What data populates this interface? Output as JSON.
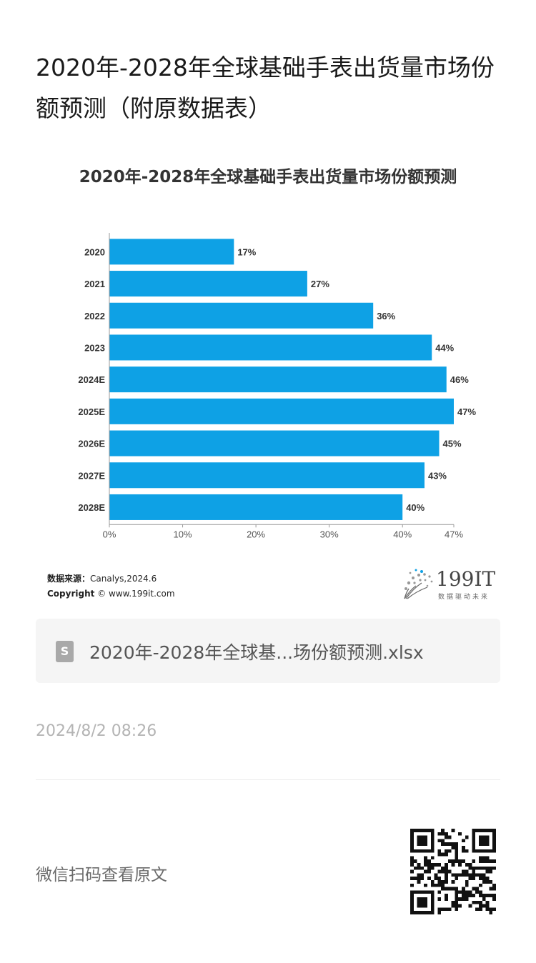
{
  "article": {
    "title": "2020年-2028年全球基础手表出货量市场份额预测（附原数据表）"
  },
  "chart_data": {
    "type": "bar",
    "orientation": "horizontal",
    "title": "2020年-2028年全球基础手表出货量市场份额预测",
    "categories": [
      "2020",
      "2021",
      "2022",
      "2023",
      "2024E",
      "2025E",
      "2026E",
      "2027E",
      "2028E"
    ],
    "values": [
      17,
      27,
      36,
      44,
      46,
      47,
      45,
      43,
      40
    ],
    "data_labels": [
      "17%",
      "27%",
      "36%",
      "44%",
      "46%",
      "47%",
      "45%",
      "43%",
      "40%"
    ],
    "x_ticks": [
      "0%",
      "10%",
      "20%",
      "30%",
      "40%",
      "47%"
    ],
    "x_tick_values": [
      0,
      10,
      20,
      30,
      40,
      47
    ],
    "xlim": [
      0,
      47
    ],
    "bar_color": "#0ea1e5",
    "grid": false,
    "legend": "none"
  },
  "source": {
    "label": "数据来源：",
    "text": "Canalys,2024.6",
    "copyright_label": "Copyright",
    "copyright_text": "© www.199it.com"
  },
  "logo": {
    "text": "199IT",
    "subtext": "数据驱动未来",
    "icon": "dandelion-logo-icon"
  },
  "attachment": {
    "icon": "spreadsheet-file-icon",
    "icon_glyph": "S",
    "file_name": "2020年-2028年全球基...场份额预测.xlsx"
  },
  "meta": {
    "timestamp": "2024/8/2 08:26",
    "scan_label": "微信扫码查看原文"
  }
}
